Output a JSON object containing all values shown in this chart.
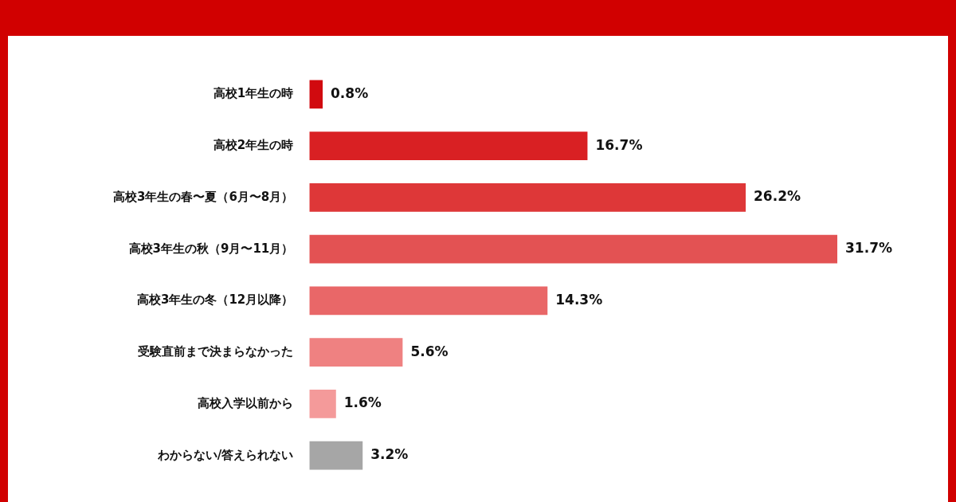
{
  "chart_data": {
    "type": "bar",
    "orientation": "horizontal",
    "value_labels": [
      "0.8%",
      "16.7%",
      "26.2%",
      "31.7%",
      "14.3%",
      "5.6%",
      "1.6%",
      "3.2%"
    ],
    "legend": false,
    "categories": [
      "高校1年生の時",
      "高校2年生の時",
      "高校3年生の春〜夏（6月〜8月）",
      "高校3年生の秋（9月〜11月）",
      "高校3年生の冬（12月以降）",
      "受験直前まで決まらなかった",
      "高校入学以前から",
      "わからない/答えられない"
    ],
    "values": [
      0.8,
      16.7,
      26.2,
      31.7,
      14.3,
      5.6,
      1.6,
      3.2
    ],
    "colors": [
      "#d10a0f",
      "#d92023",
      "#de3738",
      "#e35253",
      "#e96768",
      "#ef8181",
      "#f49a9a",
      "#a6a6a6"
    ]
  }
}
